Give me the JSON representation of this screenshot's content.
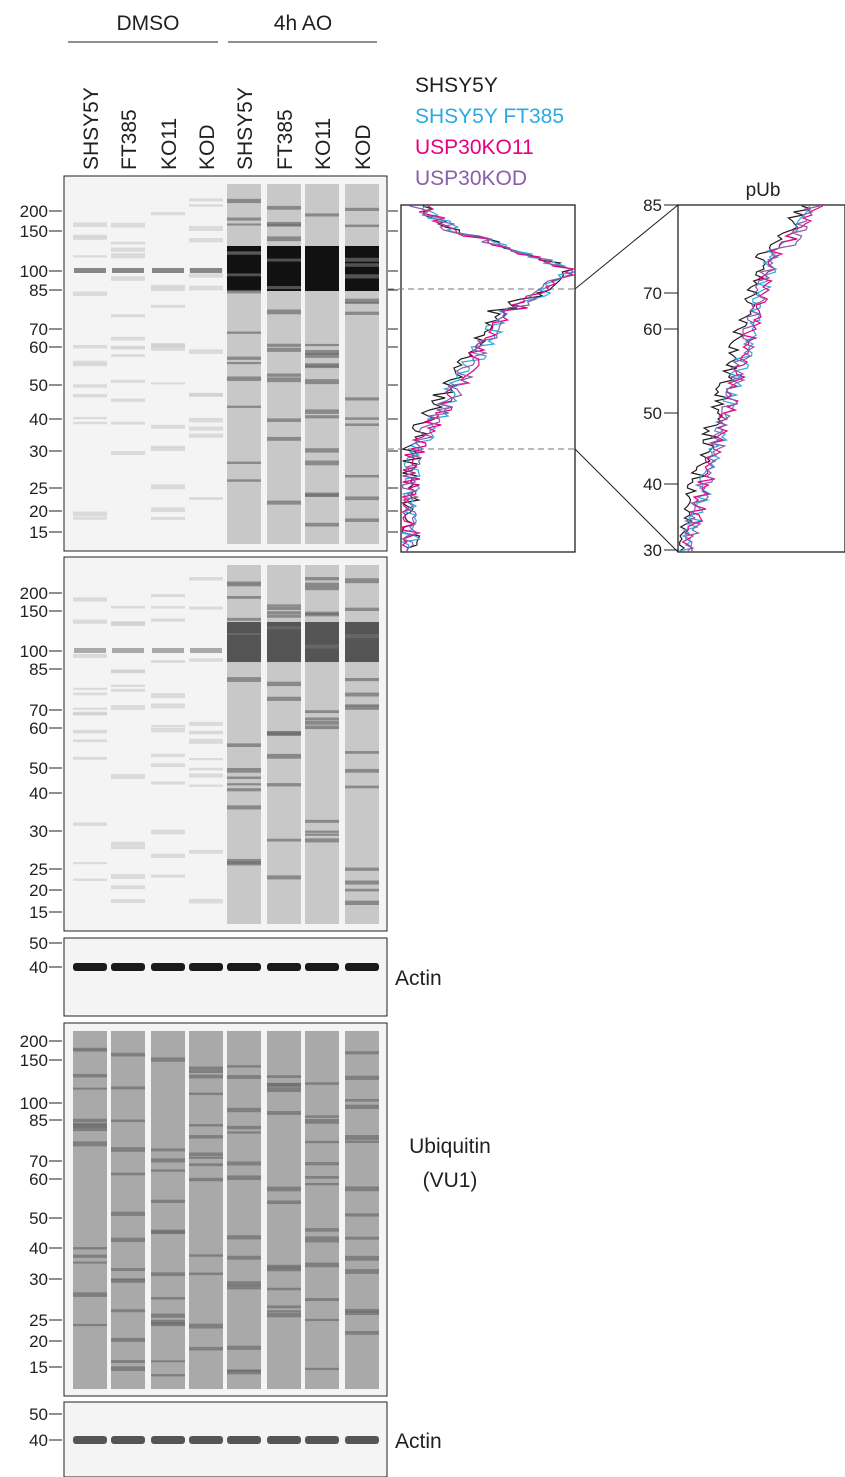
{
  "header": {
    "groups": [
      "DMSO",
      "4h AO"
    ],
    "lanes": [
      "SHSY5Y",
      "FT385",
      "KO11",
      "KOD",
      "SHSY5Y",
      "FT385",
      "KO11",
      "KOD"
    ]
  },
  "legend": {
    "items": [
      {
        "label": "SHSY5Y",
        "color": "#231f20"
      },
      {
        "label": "SHSY5Y FT385",
        "color": "#29abe2"
      },
      {
        "label": "USP30KO11",
        "color": "#e6007e"
      },
      {
        "label": "USP30KOD",
        "color": "#8a5ea8"
      }
    ]
  },
  "blots": [
    {
      "markers": [
        "200",
        "150",
        "100",
        "85",
        "70",
        "60",
        "50",
        "40",
        "30",
        "25",
        "20",
        "15"
      ]
    },
    {
      "markers": [
        "200",
        "150",
        "100",
        "85",
        "70",
        "60",
        "50",
        "40",
        "30",
        "25",
        "20",
        "15"
      ]
    },
    {
      "markers": [
        "50",
        "40"
      ],
      "label": "Actin"
    },
    {
      "markers": [
        "200",
        "150",
        "100",
        "85",
        "70",
        "60",
        "50",
        "40",
        "30",
        "25",
        "20",
        "15"
      ],
      "label_lines": [
        "Ubiquitin",
        "(VU1)"
      ]
    },
    {
      "markers": [
        "50",
        "40"
      ],
      "label": "Actin"
    }
  ],
  "zoom": {
    "title": "pUb",
    "ticks": [
      "85",
      "70",
      "60",
      "50",
      "40",
      "30"
    ]
  }
}
